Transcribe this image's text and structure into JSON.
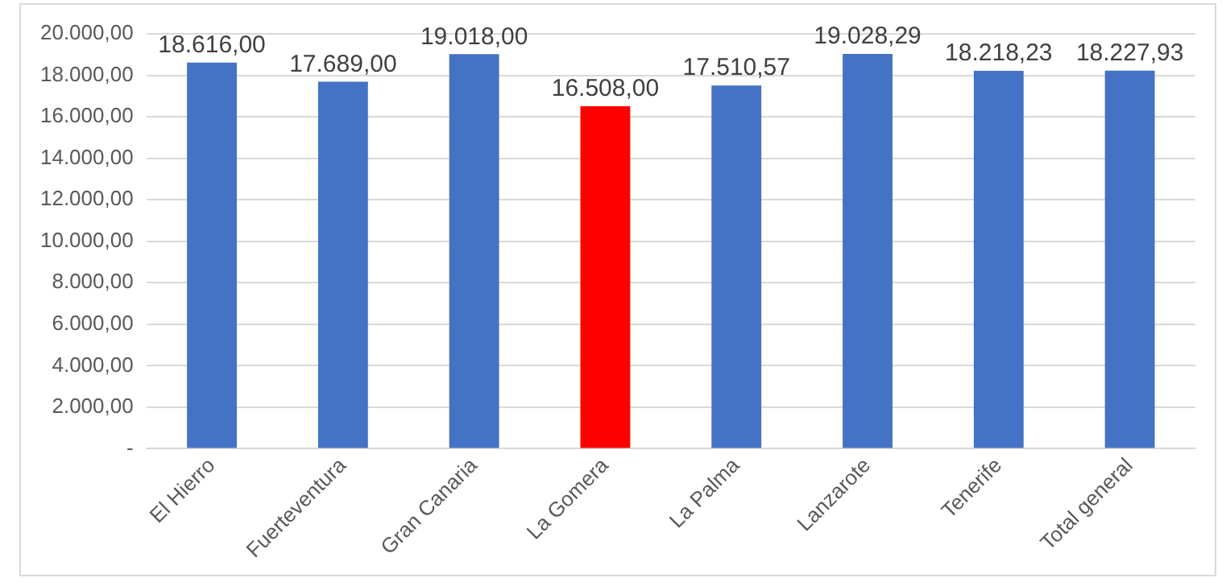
{
  "chart_data": {
    "type": "bar",
    "categories": [
      "El Hierro",
      "Fuerteventura",
      "Gran Canaria",
      "La Gomera",
      "La Palma",
      "Lanzarote",
      "Tenerife",
      "Total general"
    ],
    "values": [
      18616,
      17689,
      19018,
      16508,
      17510.57,
      19028.29,
      18218.23,
      18227.93
    ],
    "colors": [
      "#4472c4",
      "#4472c4",
      "#4472c4",
      "#ff0000",
      "#4472c4",
      "#4472c4",
      "#4472c4",
      "#4472c4"
    ],
    "value_labels": [
      "18.616,00",
      "17.689,00",
      "19.018,00",
      "16.508,00",
      "17.510,57",
      "19.028,29",
      "18.218,23",
      "18.227,93"
    ],
    "ylim": [
      0,
      20000
    ],
    "yticks": [
      {
        "value": 0,
        "label": "-"
      },
      {
        "value": 2000,
        "label": "2.000,00"
      },
      {
        "value": 4000,
        "label": "4.000,00"
      },
      {
        "value": 6000,
        "label": "6.000,00"
      },
      {
        "value": 8000,
        "label": "8.000,00"
      },
      {
        "value": 10000,
        "label": "10.000,00"
      },
      {
        "value": 12000,
        "label": "12.000,00"
      },
      {
        "value": 14000,
        "label": "14.000,00"
      },
      {
        "value": 16000,
        "label": "16.000,00"
      },
      {
        "value": 18000,
        "label": "18.000,00"
      },
      {
        "value": 20000,
        "label": "20.000,00"
      }
    ],
    "grid": "y",
    "legend": false
  }
}
